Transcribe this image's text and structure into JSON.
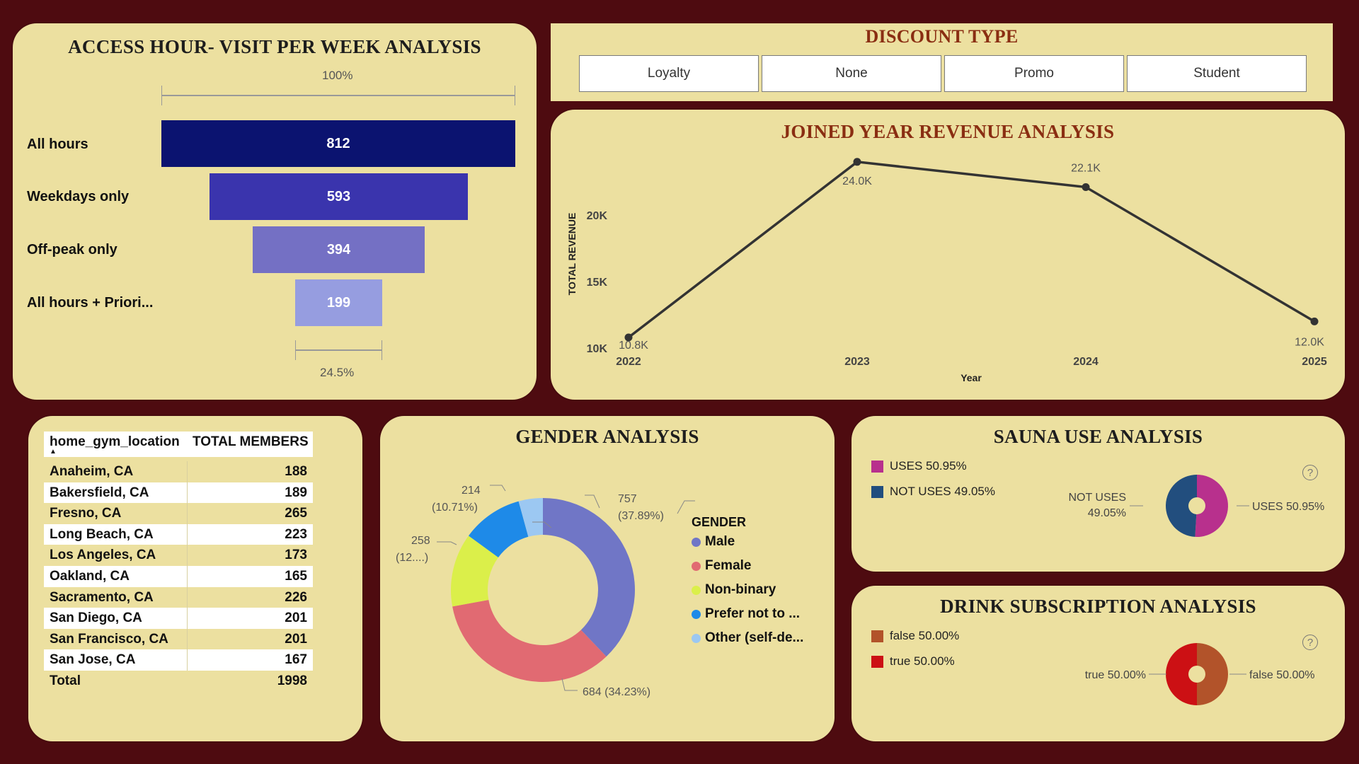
{
  "funnel": {
    "title": "ACCESS HOUR- VISIT PER WEEK ANALYSIS",
    "top_pct": "100%",
    "bottom_pct": "24.5%",
    "items": [
      {
        "label": "All hours",
        "value": "812",
        "color": "#0b1370"
      },
      {
        "label": "Weekdays only",
        "value": "593",
        "color": "#3a34ad"
      },
      {
        "label": "Off-peak only",
        "value": "394",
        "color": "#7470c4"
      },
      {
        "label": "All hours + Priori...",
        "value": "199",
        "color": "#969de0"
      }
    ]
  },
  "discount": {
    "title": "DISCOUNT TYPE",
    "options": [
      "Loyalty",
      "None",
      "Promo",
      "Student"
    ]
  },
  "revenue": {
    "title": "JOINED YEAR REVENUE ANALYSIS",
    "chart_data": {
      "type": "line",
      "x": [
        "2022",
        "2023",
        "2024",
        "2025"
      ],
      "values": [
        10800,
        24000,
        22100,
        12000
      ],
      "data_labels": [
        "10.8K",
        "24.0K",
        "22.1K",
        "12.0K"
      ],
      "xlabel": "Year",
      "ylabel": "TOTAL REVENUE",
      "yticks": [
        "10K",
        "15K",
        "20K"
      ],
      "ylim": [
        10000,
        25000
      ],
      "grid": false
    }
  },
  "location_table": {
    "headers": [
      "home_gym_location",
      "TOTAL MEMBERS"
    ],
    "sort_indicator": "▲",
    "rows": [
      [
        "Anaheim, CA",
        "188"
      ],
      [
        "Bakersfield, CA",
        "189"
      ],
      [
        "Fresno, CA",
        "265"
      ],
      [
        "Long Beach, CA",
        "223"
      ],
      [
        "Los Angeles, CA",
        "173"
      ],
      [
        "Oakland, CA",
        "165"
      ],
      [
        "Sacramento, CA",
        "226"
      ],
      [
        "San Diego, CA",
        "201"
      ],
      [
        "San Francisco, CA",
        "201"
      ],
      [
        "San Jose, CA",
        "167"
      ]
    ],
    "total_label": "Total",
    "total_value": "1998"
  },
  "gender": {
    "title": "GENDER ANALYSIS",
    "legend_title": "GENDER",
    "chart_data": {
      "type": "pie",
      "categories": [
        "Male",
        "Female",
        "Non-binary",
        "Prefer not to ...",
        "Other (self-de..."
      ],
      "values": [
        757,
        684,
        258,
        214,
        85
      ],
      "colors": [
        "#7076c6",
        "#e16a72",
        "#dbef4a",
        "#1e8ae8",
        "#9cc8f2"
      ]
    },
    "labels": {
      "male_1": "757",
      "male_2": "(37.89%)",
      "female": "684 (34.23%)",
      "nb_1": "258",
      "nb_2": "(12....)",
      "pref_1": "214",
      "pref_2": "(10.71%)"
    }
  },
  "sauna": {
    "title": "SAUNA USE ANALYSIS",
    "legend": [
      {
        "label": "USES 50.95%",
        "color": "#b8308d"
      },
      {
        "label": "NOT USES 49.05%",
        "color": "#224e7e"
      }
    ],
    "chart_data": {
      "type": "pie",
      "categories": [
        "USES",
        "NOT USES"
      ],
      "values": [
        50.95,
        49.05
      ],
      "colors": [
        "#b8308d",
        "#224e7e"
      ]
    },
    "left_label_1": "NOT USES",
    "left_label_2": "49.05%",
    "right_label": "USES 50.95%",
    "help": "?"
  },
  "drink": {
    "title": "DRINK SUBSCRIPTION ANALYSIS",
    "legend": [
      {
        "label": "false 50.00%",
        "color": "#b2532a"
      },
      {
        "label": "true 50.00%",
        "color": "#cc1014"
      }
    ],
    "chart_data": {
      "type": "pie",
      "categories": [
        "false",
        "true"
      ],
      "values": [
        50,
        50
      ],
      "colors": [
        "#b2532a",
        "#cc1014"
      ]
    },
    "left_label": "true 50.00%",
    "right_label": "false 50.00%",
    "help": "?"
  }
}
